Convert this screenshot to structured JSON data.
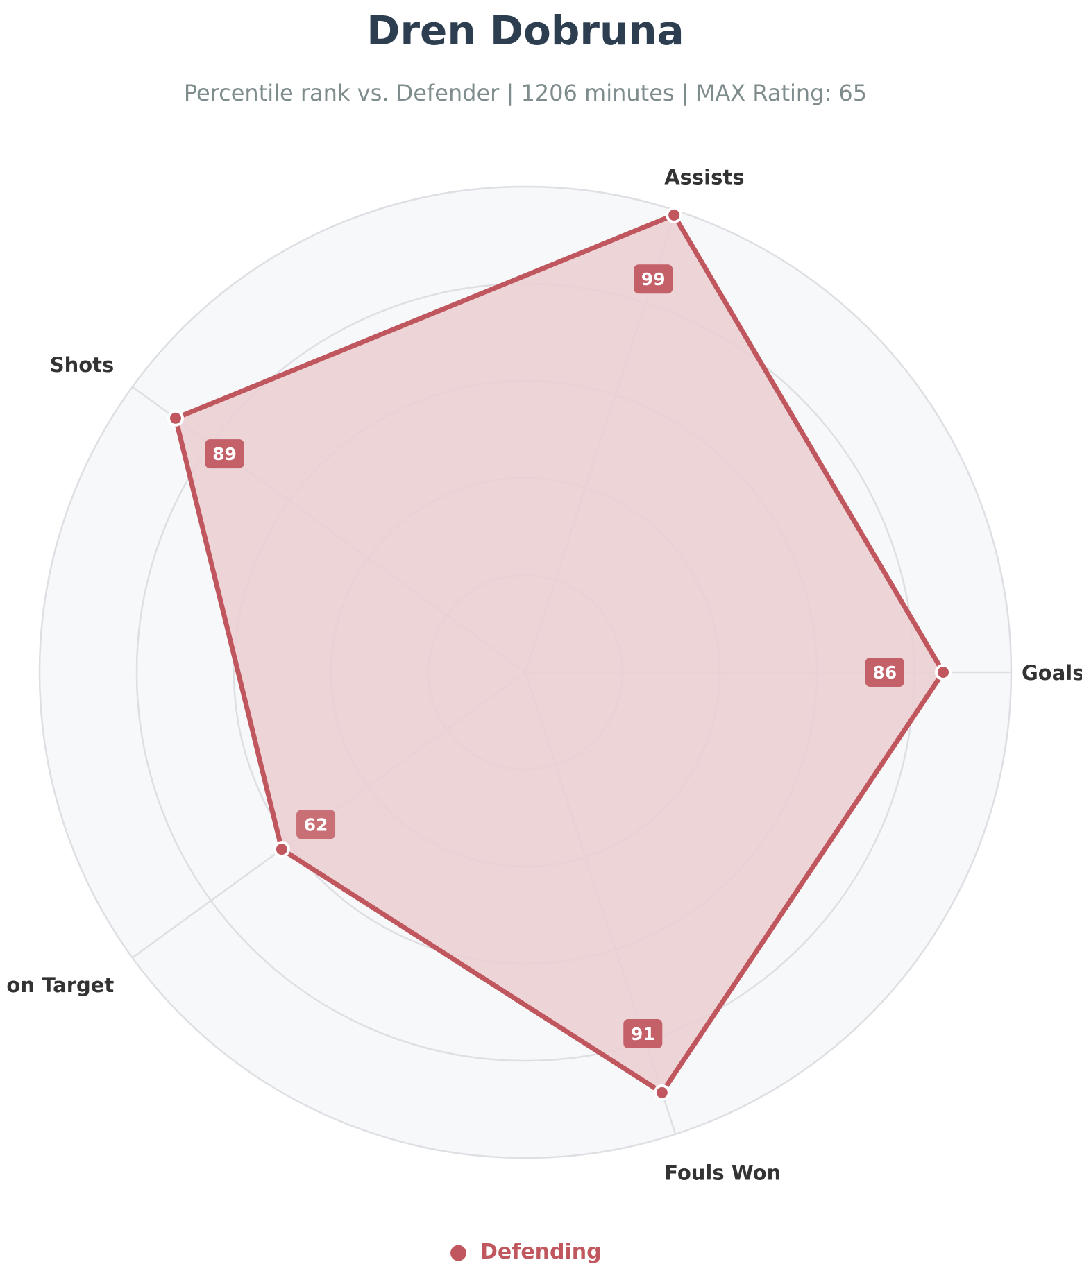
{
  "chart_data": {
    "type": "radar",
    "title": "Dren Dobruna",
    "subtitle": "Percentile rank vs. Defender | 1206 minutes | MAX Rating: 65",
    "categories": [
      "Goals",
      "Assists",
      "Shots",
      "Shots on Target",
      "Fouls Won"
    ],
    "series": [
      {
        "name": "Defending",
        "values": [
          86,
          99,
          89,
          62,
          91
        ]
      }
    ],
    "rlim": [
      0,
      100
    ],
    "ring_values": [
      20,
      40,
      60,
      80,
      100
    ],
    "grid": true,
    "legend": "bottom-center",
    "colors": {
      "series": "#c0565e",
      "fill": "#eacfd3",
      "title": "#2c3e50",
      "subtitle": "#7f8c8d",
      "axis_label": "#333333",
      "background_disc": "#f7f8fa",
      "grid": "#dedfe3"
    },
    "legend_marker": "●"
  }
}
